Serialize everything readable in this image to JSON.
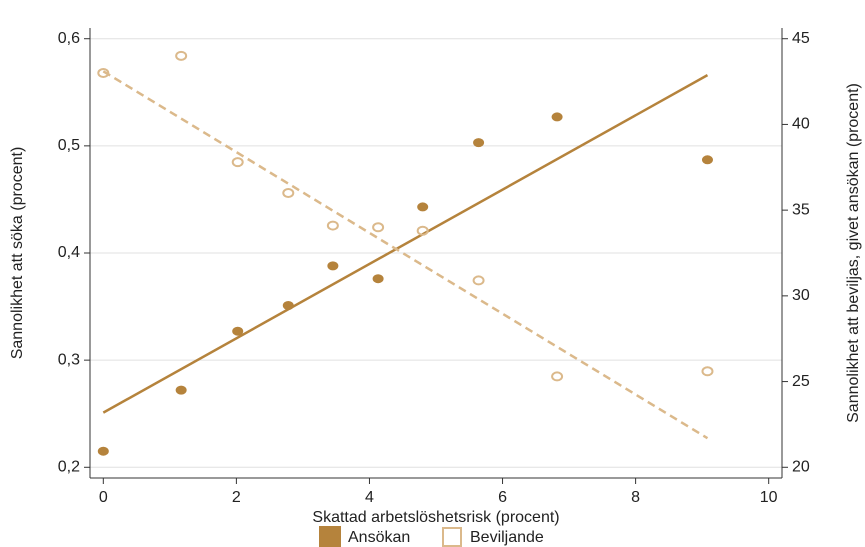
{
  "chart_data": {
    "type": "scatter",
    "xlabel": "Skattad arbetslöshetsrisk (procent)",
    "ylabel": "Sannolikhet att söka (procent)",
    "y2label": "Sannolikhet att beviljas, givet ansökan (procent)",
    "xlim": [
      -0.2,
      10.2
    ],
    "xticks": [
      0,
      2,
      4,
      6,
      8,
      10
    ],
    "ylim": [
      0.19,
      0.61
    ],
    "yticks": [
      {
        "value": 0.2,
        "label": "0,2"
      },
      {
        "value": 0.3,
        "label": "0,3"
      },
      {
        "value": 0.4,
        "label": "0,4"
      },
      {
        "value": 0.5,
        "label": "0,5"
      },
      {
        "value": 0.6,
        "label": "0,6"
      }
    ],
    "y2lim": [
      19.375,
      45.625
    ],
    "y2ticks": [
      20,
      25,
      30,
      35,
      40,
      45
    ],
    "grid": true,
    "series": [
      {
        "name": "Ansökan",
        "color": "#b5833c",
        "marker": "filled",
        "x": [
          0,
          1.17,
          2.02,
          2.78,
          3.45,
          4.13,
          4.8,
          5.64,
          6.82,
          9.08
        ],
        "values": [
          0.215,
          0.272,
          0.327,
          0.351,
          0.388,
          0.376,
          0.443,
          0.503,
          0.527,
          0.487
        ],
        "fit": {
          "x": [
            0,
            9.08
          ],
          "values": [
            0.251,
            0.566
          ],
          "dash": false
        }
      },
      {
        "name": "Beviljande",
        "color": "#dbb98b",
        "marker": "hollow",
        "axis": "y2",
        "x": [
          0,
          1.17,
          2.02,
          2.78,
          3.45,
          4.13,
          4.8,
          5.64,
          6.82,
          9.08
        ],
        "values": [
          43.0,
          44.0,
          37.8,
          36.0,
          34.1,
          34.0,
          33.8,
          30.9,
          25.3,
          25.6
        ],
        "fit": {
          "x": [
            0,
            9.08
          ],
          "values": [
            43.1,
            21.7
          ],
          "dash": true
        }
      }
    ]
  }
}
